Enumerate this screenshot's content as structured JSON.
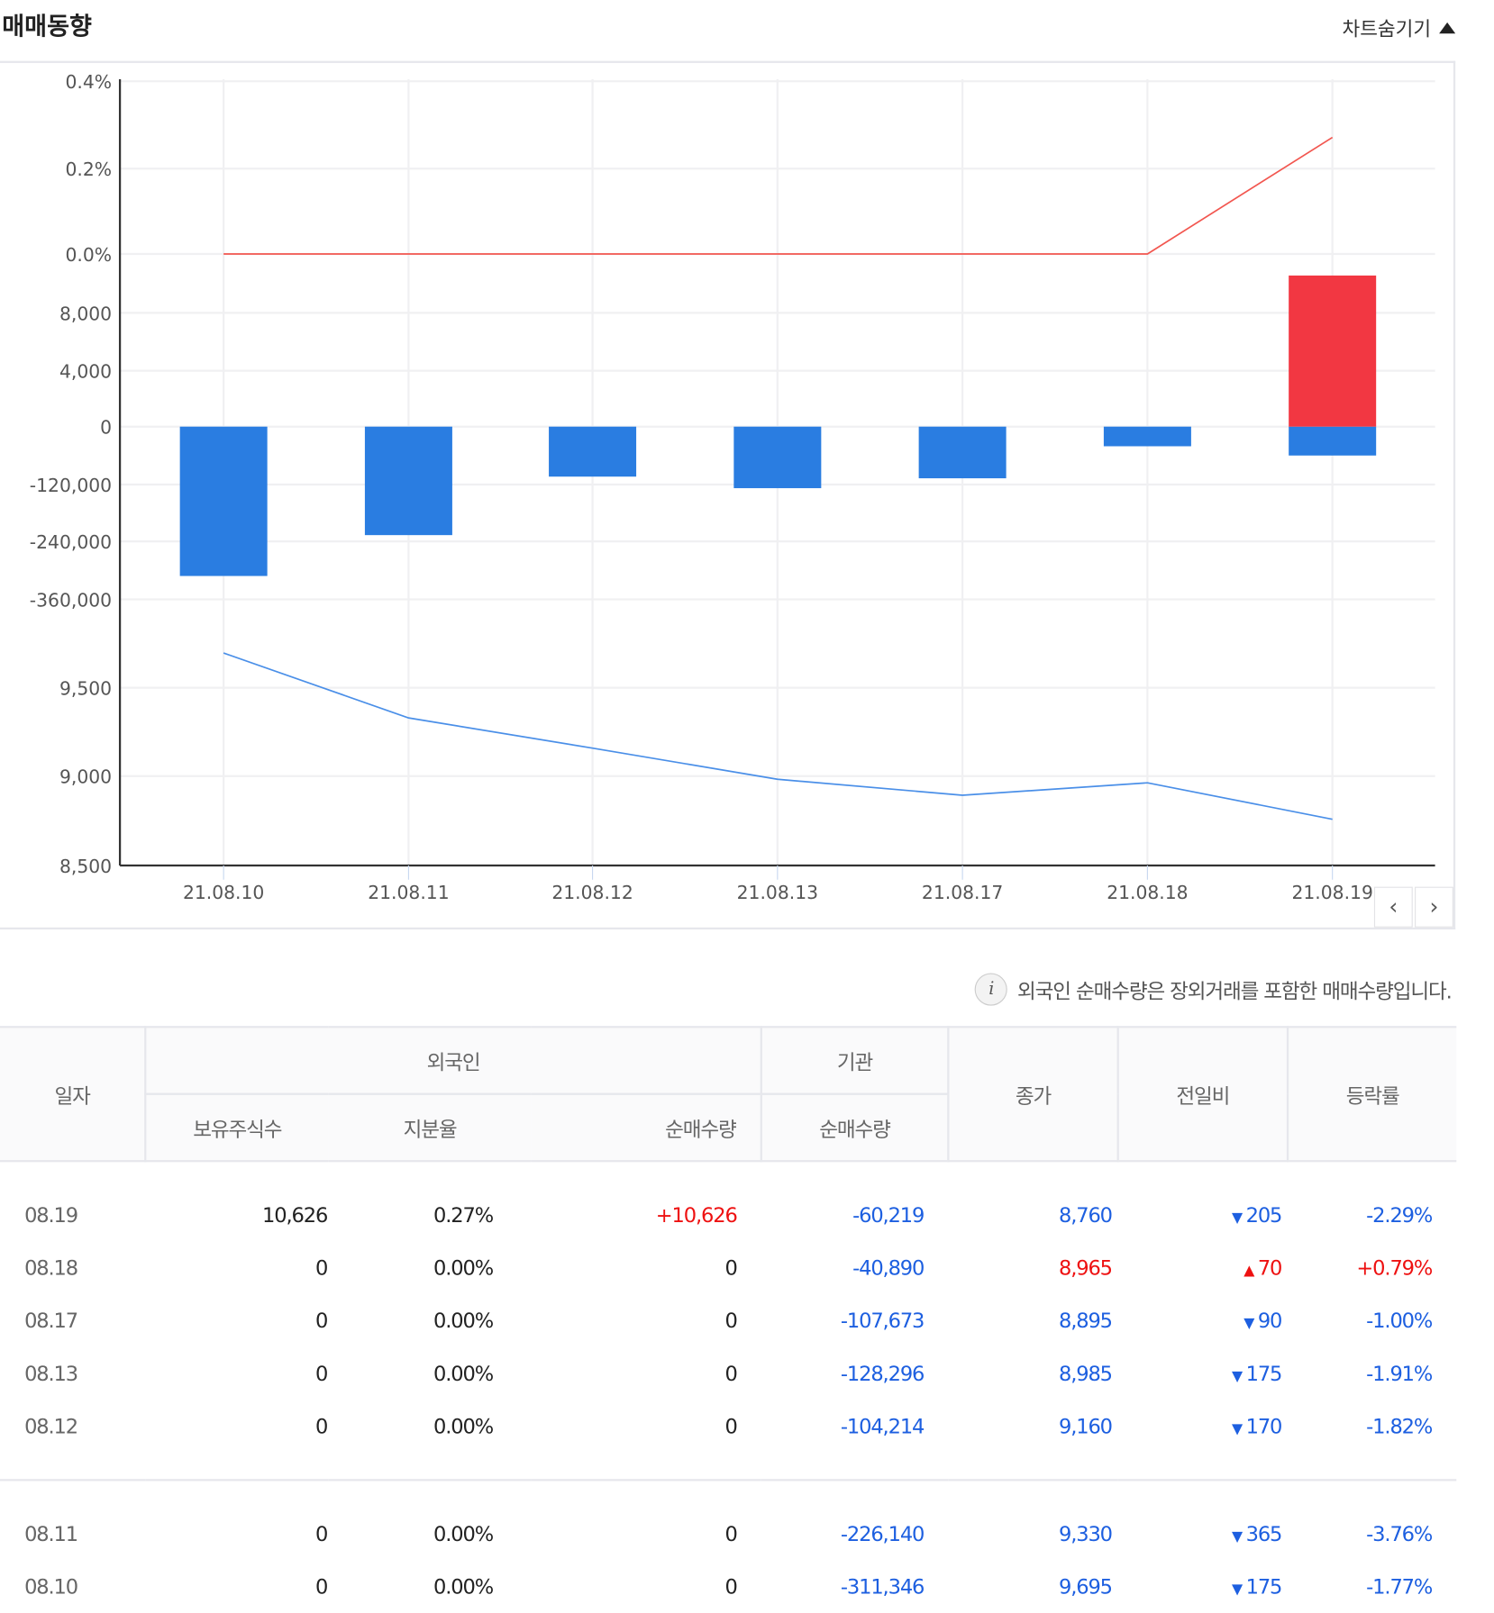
{
  "header": {
    "title": "매매동향",
    "toggle_label": "차트숨기기",
    "toggle_icon": "triangle-up-icon"
  },
  "chart_data": {
    "type": "bar+line",
    "categories": [
      "21.08.10",
      "21.08.11",
      "21.08.12",
      "21.08.13",
      "21.08.17",
      "21.08.18",
      "21.08.19"
    ],
    "panels": [
      {
        "kind": "line",
        "series": [
          {
            "values": [
              0,
              0,
              0,
              0,
              0,
              0,
              0.27
            ],
            "color": "#f2564f"
          }
        ],
        "ticks": [
          "0.4%",
          "0.2%",
          "0.0%"
        ],
        "ylim": [
          0,
          0.4
        ]
      },
      {
        "kind": "bar",
        "series": [
          {
            "values": [
              -311346,
              -226140,
              -104214,
              -128296,
              -107673,
              -40890,
              -60219
            ],
            "color": "#2a7de1"
          },
          {
            "values": [
              0,
              0,
              0,
              0,
              0,
              0,
              10626
            ],
            "color": "#f23742"
          }
        ],
        "ticks_positive": [
          "8,000",
          "4,000",
          "0"
        ],
        "ticks_negative": [
          "-120,000",
          "-240,000",
          "-360,000"
        ]
      },
      {
        "kind": "line",
        "series": [
          {
            "values": [
              9695,
              9330,
              9160,
              8985,
              8895,
              8965,
              8760
            ],
            "color": "#4a8fe8"
          }
        ],
        "ticks": [
          "9,500",
          "9,000",
          "8,500"
        ],
        "ylim": [
          8500,
          9900
        ]
      }
    ],
    "grid": true
  },
  "nav": {
    "prev_icon": "chevron-left-icon",
    "next_icon": "chevron-right-icon"
  },
  "note": {
    "icon": "info-icon",
    "text": "외국인 순매수량은 장외거래를 포함한 매매수량입니다."
  },
  "table": {
    "headers": {
      "date": "일자",
      "foreign": "외국인",
      "institution": "기관",
      "holdings": "보유주식수",
      "ratio": "지분율",
      "net": "순매수량",
      "inst_net": "순매수량",
      "close": "종가",
      "change": "전일비",
      "rate": "등락률"
    },
    "rows": [
      {
        "date": "08.19",
        "holdings": "10,626",
        "ratio": "0.27%",
        "net": "+10,626",
        "inst": "-60,219",
        "close": "8,760",
        "dir": "down",
        "change": "205",
        "rate": "-2.29%"
      },
      {
        "date": "08.18",
        "holdings": "0",
        "ratio": "0.00%",
        "net": "0",
        "inst": "-40,890",
        "close": "8,965",
        "dir": "up",
        "change": "70",
        "rate": "+0.79%"
      },
      {
        "date": "08.17",
        "holdings": "0",
        "ratio": "0.00%",
        "net": "0",
        "inst": "-107,673",
        "close": "8,895",
        "dir": "down",
        "change": "90",
        "rate": "-1.00%"
      },
      {
        "date": "08.13",
        "holdings": "0",
        "ratio": "0.00%",
        "net": "0",
        "inst": "-128,296",
        "close": "8,985",
        "dir": "down",
        "change": "175",
        "rate": "-1.91%"
      },
      {
        "date": "08.12",
        "holdings": "0",
        "ratio": "0.00%",
        "net": "0",
        "inst": "-104,214",
        "close": "9,160",
        "dir": "down",
        "change": "170",
        "rate": "-1.82%"
      },
      {
        "date": "08.11",
        "holdings": "0",
        "ratio": "0.00%",
        "net": "0",
        "inst": "-226,140",
        "close": "9,330",
        "dir": "down",
        "change": "365",
        "rate": "-3.76%"
      },
      {
        "date": "08.10",
        "holdings": "0",
        "ratio": "0.00%",
        "net": "0",
        "inst": "-311,346",
        "close": "9,695",
        "dir": "down",
        "change": "175",
        "rate": "-1.77%"
      }
    ]
  }
}
